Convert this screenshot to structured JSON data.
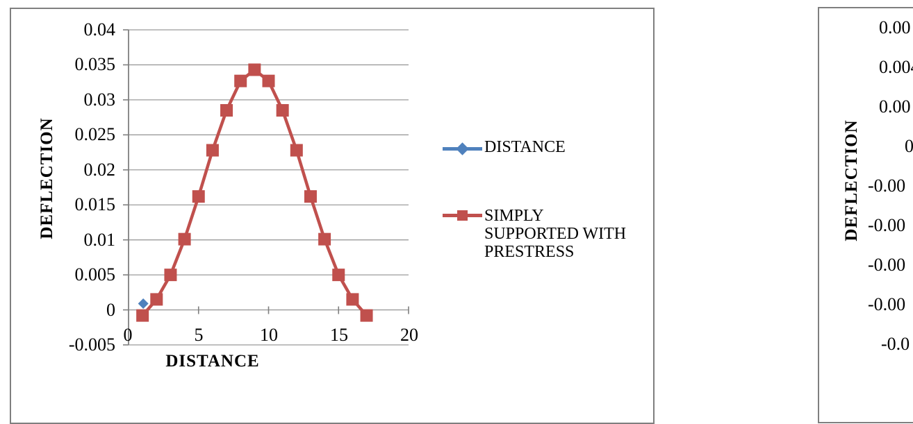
{
  "colors": {
    "series_distance": "#4F81BD",
    "series_prestress": "#C0504D",
    "gridline": "#9b9b9b",
    "axis": "#7f7f7f",
    "frame_border": "#7f7f7f",
    "text": "#000000"
  },
  "left_chart": {
    "y_axis_title": "DEFLECTION",
    "x_axis_title": "DISTANCE",
    "y_ticks": [
      "0.04",
      "0.035",
      "0.03",
      "0.025",
      "0.02",
      "0.015",
      "0.01",
      "0.005",
      "0",
      "-0.005"
    ],
    "x_ticks": [
      "0",
      "5",
      "10",
      "15",
      "20"
    ],
    "legend": {
      "entry1": {
        "label": "DISTANCE",
        "marker": "diamond",
        "color": "#4F81BD"
      },
      "entry2": {
        "label": "SIMPLY SUPPORTED WITH PRESTRESS",
        "label_lines": [
          "SIMPLY",
          "SUPPORTED WITH",
          "PRESTRESS"
        ],
        "marker": "square",
        "color": "#C0504D"
      }
    }
  },
  "right_chart": {
    "y_axis_title": "DEFLECTION",
    "y_tick_fragments": [
      "0.00",
      "0.004",
      "0.00",
      "0",
      "-0.00",
      "-0.00",
      "-0.00",
      "-0.00",
      "-0.0"
    ]
  },
  "chart_data": [
    {
      "type": "line",
      "title": "",
      "xlabel": "DISTANCE",
      "ylabel": "DEFLECTION",
      "xlim": [
        0,
        20
      ],
      "ylim": [
        -0.005,
        0.04
      ],
      "x_tick_values": [
        0,
        5,
        10,
        15,
        20
      ],
      "y_tick_step": 0.005,
      "grid": true,
      "legend_position": "right",
      "series": [
        {
          "name": "DISTANCE",
          "color": "#4F81BD",
          "marker": "diamond",
          "marker_size": 15,
          "x": [
            1.05
          ],
          "y": [
            0.0009
          ]
        },
        {
          "name": "SIMPLY SUPPORTED WITH PRESTRESS",
          "color": "#C0504D",
          "marker": "square",
          "marker_size": 18,
          "x": [
            1,
            2,
            3,
            4,
            5,
            6,
            7,
            8,
            9,
            10,
            11,
            12,
            13,
            14,
            15,
            16,
            17
          ],
          "y": [
            -0.0008,
            0.0015,
            0.005,
            0.0101,
            0.0162,
            0.0228,
            0.0285,
            0.0327,
            0.0343,
            0.0327,
            0.0285,
            0.0228,
            0.0162,
            0.0101,
            0.005,
            0.0015,
            -0.0008
          ]
        }
      ]
    },
    {
      "type": "line",
      "note": "second chart clipped at right edge of screenshot; only y-axis area visible",
      "ylabel": "DEFLECTION",
      "y_tick_labels_visible": [
        "0.00",
        "0.004",
        "0.00",
        "0",
        "-0.00",
        "-0.00",
        "-0.00",
        "-0.00",
        "-0.0"
      ]
    }
  ]
}
